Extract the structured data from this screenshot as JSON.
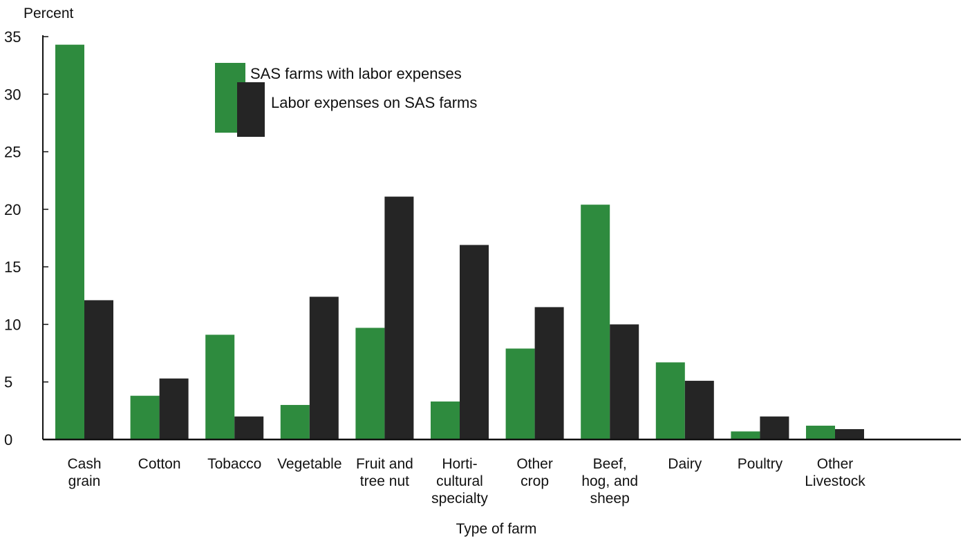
{
  "colors": {
    "series1": "#2e8b3e",
    "series2": "#252525",
    "axis": "#111111"
  },
  "chart_data": {
    "type": "bar",
    "title": "",
    "ylabel": "Percent",
    "xlabel": "Type of farm",
    "ylim": [
      0,
      35
    ],
    "yticks": [
      0,
      5,
      10,
      15,
      20,
      25,
      30,
      35
    ],
    "grid": false,
    "legend_position": "top-center",
    "categories": [
      [
        "Cash",
        "grain"
      ],
      [
        "Cotton"
      ],
      [
        "Tobacco"
      ],
      [
        "Vegetable"
      ],
      [
        "Fruit and",
        "tree nut"
      ],
      [
        "Horti-",
        "cultural",
        "specialty"
      ],
      [
        "Other",
        "crop"
      ],
      [
        "Beef,",
        "hog, and",
        "sheep"
      ],
      [
        "Dairy"
      ],
      [
        "Poultry"
      ],
      [
        "Other",
        "Livestock"
      ]
    ],
    "series": [
      {
        "name": "SAS farms with labor expenses",
        "values": [
          34.3,
          3.8,
          9.1,
          3.0,
          9.7,
          3.3,
          7.9,
          20.4,
          6.7,
          0.7,
          1.2
        ]
      },
      {
        "name": "Labor expenses on SAS farms",
        "values": [
          12.1,
          5.3,
          2.0,
          12.4,
          21.1,
          16.9,
          11.5,
          10.0,
          5.1,
          2.0,
          0.9
        ]
      }
    ]
  }
}
